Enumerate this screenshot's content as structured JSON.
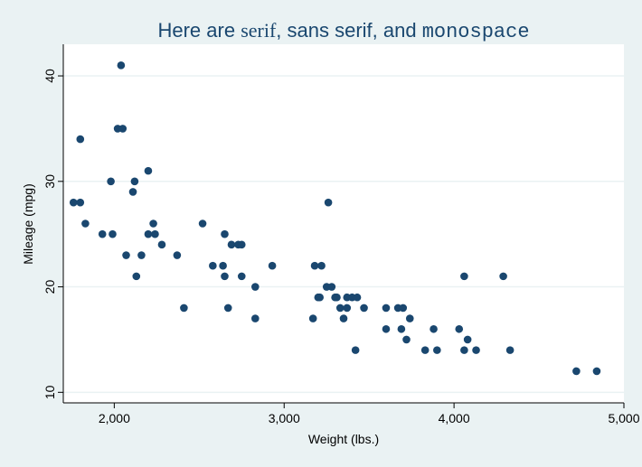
{
  "chart_data": {
    "type": "scatter",
    "title": {
      "text": "Here are serif, sans serif, and monospace",
      "parts": [
        {
          "text": "Here are ",
          "font": "sans"
        },
        {
          "text": "serif",
          "font": "serif"
        },
        {
          "text": ", sans serif, and ",
          "font": "sans"
        },
        {
          "text": "monospace",
          "font": "mono"
        }
      ]
    },
    "xlabel": "Weight (lbs.)",
    "ylabel": "Mileage (mpg)",
    "xlim": [
      1700,
      5000
    ],
    "ylim": [
      9,
      43
    ],
    "xticks": [
      2000,
      3000,
      4000,
      5000
    ],
    "xtick_labels": [
      "2,000",
      "3,000",
      "4,000",
      "5,000"
    ],
    "yticks": [
      10,
      20,
      30,
      40
    ],
    "ytick_labels": [
      "10",
      "20",
      "30",
      "40"
    ],
    "grid": "horizontal",
    "colors": {
      "marker": "#1a476f",
      "plot_background": "#ffffff",
      "outer_background": "#eaf2f3",
      "grid": "#eaf2f3",
      "title": "#1a476f"
    },
    "points": [
      [
        1760,
        28
      ],
      [
        1800,
        34
      ],
      [
        1800,
        28
      ],
      [
        1830,
        26
      ],
      [
        1930,
        25
      ],
      [
        1980,
        30
      ],
      [
        1990,
        25
      ],
      [
        2020,
        35
      ],
      [
        2040,
        41
      ],
      [
        2050,
        35
      ],
      [
        2070,
        23
      ],
      [
        2110,
        29
      ],
      [
        2120,
        30
      ],
      [
        2130,
        21
      ],
      [
        2160,
        23
      ],
      [
        2200,
        25
      ],
      [
        2200,
        31
      ],
      [
        2230,
        26
      ],
      [
        2240,
        25
      ],
      [
        2280,
        24
      ],
      [
        2370,
        23
      ],
      [
        2410,
        18
      ],
      [
        2520,
        26
      ],
      [
        2580,
        22
      ],
      [
        2640,
        22
      ],
      [
        2650,
        25
      ],
      [
        2650,
        21
      ],
      [
        2670,
        18
      ],
      [
        2690,
        24
      ],
      [
        2730,
        24
      ],
      [
        2750,
        21
      ],
      [
        2750,
        24
      ],
      [
        2830,
        20
      ],
      [
        2830,
        17
      ],
      [
        2930,
        22
      ],
      [
        3170,
        17
      ],
      [
        3180,
        22
      ],
      [
        3200,
        19
      ],
      [
        3210,
        19
      ],
      [
        3220,
        22
      ],
      [
        3250,
        20
      ],
      [
        3260,
        28
      ],
      [
        3280,
        20
      ],
      [
        3300,
        19
      ],
      [
        3310,
        19
      ],
      [
        3330,
        18
      ],
      [
        3350,
        17
      ],
      [
        3370,
        19
      ],
      [
        3370,
        18
      ],
      [
        3400,
        19
      ],
      [
        3420,
        14
      ],
      [
        3430,
        19
      ],
      [
        3470,
        18
      ],
      [
        3600,
        18
      ],
      [
        3600,
        16
      ],
      [
        3670,
        18
      ],
      [
        3690,
        16
      ],
      [
        3700,
        18
      ],
      [
        3720,
        15
      ],
      [
        3740,
        17
      ],
      [
        3830,
        14
      ],
      [
        3880,
        16
      ],
      [
        3900,
        14
      ],
      [
        4030,
        16
      ],
      [
        4060,
        14
      ],
      [
        4060,
        21
      ],
      [
        4080,
        15
      ],
      [
        4130,
        14
      ],
      [
        4290,
        21
      ],
      [
        4330,
        14
      ],
      [
        4720,
        12
      ],
      [
        4840,
        12
      ]
    ]
  }
}
